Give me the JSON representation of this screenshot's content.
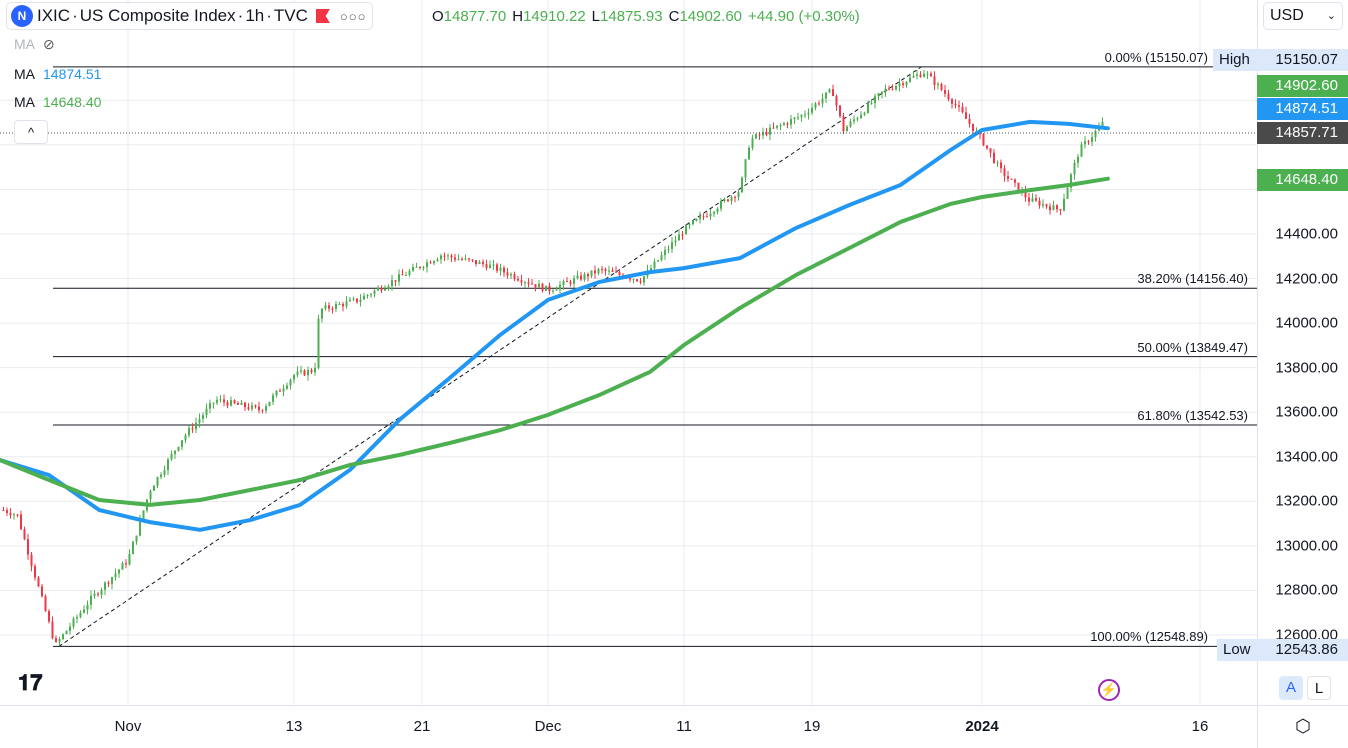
{
  "header": {
    "symbol": "IXIC",
    "name": "US Composite Index",
    "interval": "1h",
    "source": "TVC",
    "separator": " · ",
    "ohlc": {
      "o_label": "O",
      "o": "14877.70",
      "h_label": "H",
      "h": "14910.22",
      "l_label": "L",
      "l": "14875.93",
      "c_label": "C",
      "c": "14902.60",
      "change": "+44.90 (+0.30%)"
    }
  },
  "indicators": [
    {
      "label": "MA",
      "value": "",
      "hidden": true
    },
    {
      "label": "MA",
      "value": "14874.51",
      "color": "#2196f3"
    },
    {
      "label": "MA",
      "value": "14648.40",
      "color": "#4caf50"
    }
  ],
  "currency": "USD",
  "colors": {
    "up": "#4caf50",
    "down": "#f23645",
    "ma_fast": "#2196f3",
    "ma_slow": "#4caf50",
    "last_price_bg": "#4a4a4a"
  },
  "price_labels": {
    "high_label": "High",
    "high": "15150.07",
    "low_label": "Low",
    "low": "12543.86",
    "close": "14902.60",
    "ma_fast": "14874.51",
    "ma_slow": "14648.40",
    "crosshair": "14857.71"
  },
  "buttons": {
    "auto": "A",
    "log": "L"
  },
  "chart_data": {
    "type": "candlestick",
    "x_ticks": [
      {
        "label": "Nov",
        "date": "2023-11-01"
      },
      {
        "label": "13",
        "date": "2023-11-13"
      },
      {
        "label": "21",
        "date": "2023-11-21"
      },
      {
        "label": "Dec",
        "date": "2023-12-01"
      },
      {
        "label": "11",
        "date": "2023-12-11"
      },
      {
        "label": "19",
        "date": "2023-12-19"
      },
      {
        "label": "2024",
        "date": "2024-01-02"
      },
      {
        "label": "16",
        "date": "2024-01-16"
      }
    ],
    "y_ticks": [
      "14400.00",
      "14200.00",
      "14000.00",
      "13800.00",
      "13600.00",
      "13400.00",
      "13200.00",
      "13000.00",
      "12800.00",
      "12600.00"
    ],
    "y_range": [
      12450,
      15230
    ],
    "price_path": [
      [
        "2023-10-23",
        13161
      ],
      [
        "2023-10-24",
        13139
      ],
      [
        "2023-10-25T14:00",
        12802
      ],
      [
        "2023-10-26T18:00",
        12555
      ],
      [
        "2023-10-29T06:00",
        12757
      ],
      [
        "2023-11-01",
        12937
      ],
      [
        "2023-11-02T14:00",
        13251
      ],
      [
        "2023-11-04T20:00",
        13475
      ],
      [
        "2023-11-07T08:00",
        13655
      ],
      [
        "2023-11-10T14:00",
        13610
      ],
      [
        "2023-11-13",
        13767
      ],
      [
        "2023-11-14T07:00",
        13790
      ],
      [
        "2023-11-14T14:00",
        14059
      ],
      [
        "2023-11-17",
        14104
      ],
      [
        "2023-11-20T10:00",
        14238
      ],
      [
        "2023-11-22T12:00",
        14306
      ],
      [
        "2023-11-26T04:00",
        14261
      ],
      [
        "2023-12-01",
        14149
      ],
      [
        "2023-12-04T20:00",
        14238
      ],
      [
        "2023-12-07T20:00",
        14194
      ],
      [
        "2023-12-11",
        14418
      ],
      [
        "2023-12-14T12:00",
        14597
      ],
      [
        "2023-12-15T03:00",
        14822
      ],
      [
        "2023-12-18T10:00",
        14934
      ],
      [
        "2023-12-20T16:00",
        15046
      ],
      [
        "2023-12-21T14:00",
        14867
      ],
      [
        "2023-12-25",
        15046
      ],
      [
        "2023-12-28T06:00",
        15127
      ],
      [
        "2023-12-30T12:00",
        15001
      ],
      [
        "2024-01-02",
        14822
      ],
      [
        "2024-01-03T04:00",
        14687
      ],
      [
        "2024-01-05",
        14553
      ],
      [
        "2024-01-07",
        14508
      ],
      [
        "2024-01-08T06:00",
        14777
      ],
      [
        "2024-01-09T20:00",
        14902.6
      ]
    ],
    "ma_dates": [
      "2023-10-22T17:00",
      "2023-10-26T07:00",
      "2023-10-29T22:00",
      "2023-11-02T14:00",
      "2023-11-06T05:00",
      "2023-11-09T20:00",
      "2023-11-13T09:00",
      "2023-11-16T12:00",
      "2023-11-19T14:00",
      "2023-11-23T05:00",
      "2023-11-27T05:00",
      "2023-12-01",
      "2023-12-04T19:00",
      "2023-12-08T12:00",
      "2023-12-11",
      "2023-12-14T12:00",
      "2023-12-18",
      "2023-12-22T02:00",
      "2023-12-26T07:00",
      "2023-12-30T10:00",
      "2024-01-02",
      "2024-01-05T02:00",
      "2024-01-07T14:00",
      "2024-01-10T02:00"
    ],
    "series": [
      {
        "name": "MA",
        "values": [
          13386,
          13318,
          13161,
          13107,
          13072,
          13116,
          13184,
          13341,
          13565,
          13754,
          13947,
          14104,
          14185,
          14229,
          14247,
          14292,
          14427,
          14530,
          14620,
          14777,
          14867,
          14903,
          14894,
          14874.51
        ]
      },
      {
        "name": "MA",
        "values": [
          13386,
          13296,
          13206,
          13184,
          13206,
          13251,
          13296,
          13363,
          13408,
          13462,
          13520,
          13588,
          13678,
          13781,
          13902,
          14068,
          14216,
          14337,
          14454,
          14535,
          14566,
          14597,
          14620,
          14648.4
        ]
      }
    ],
    "fibonacci": [
      {
        "label": "0.00% (15150.07)",
        "value": 15150.07
      },
      {
        "label": "38.20% (14156.40)",
        "value": 14156.4
      },
      {
        "label": "50.00% (13849.47)",
        "value": 13849.47
      },
      {
        "label": "61.80% (13542.53)",
        "value": 13542.53
      },
      {
        "label": "100.00% (12548.89)",
        "value": 12548.89
      }
    ],
    "trendline": [
      [
        "2023-10-27",
        12548.89
      ],
      [
        "2023-12-28",
        15150.07
      ]
    ]
  }
}
